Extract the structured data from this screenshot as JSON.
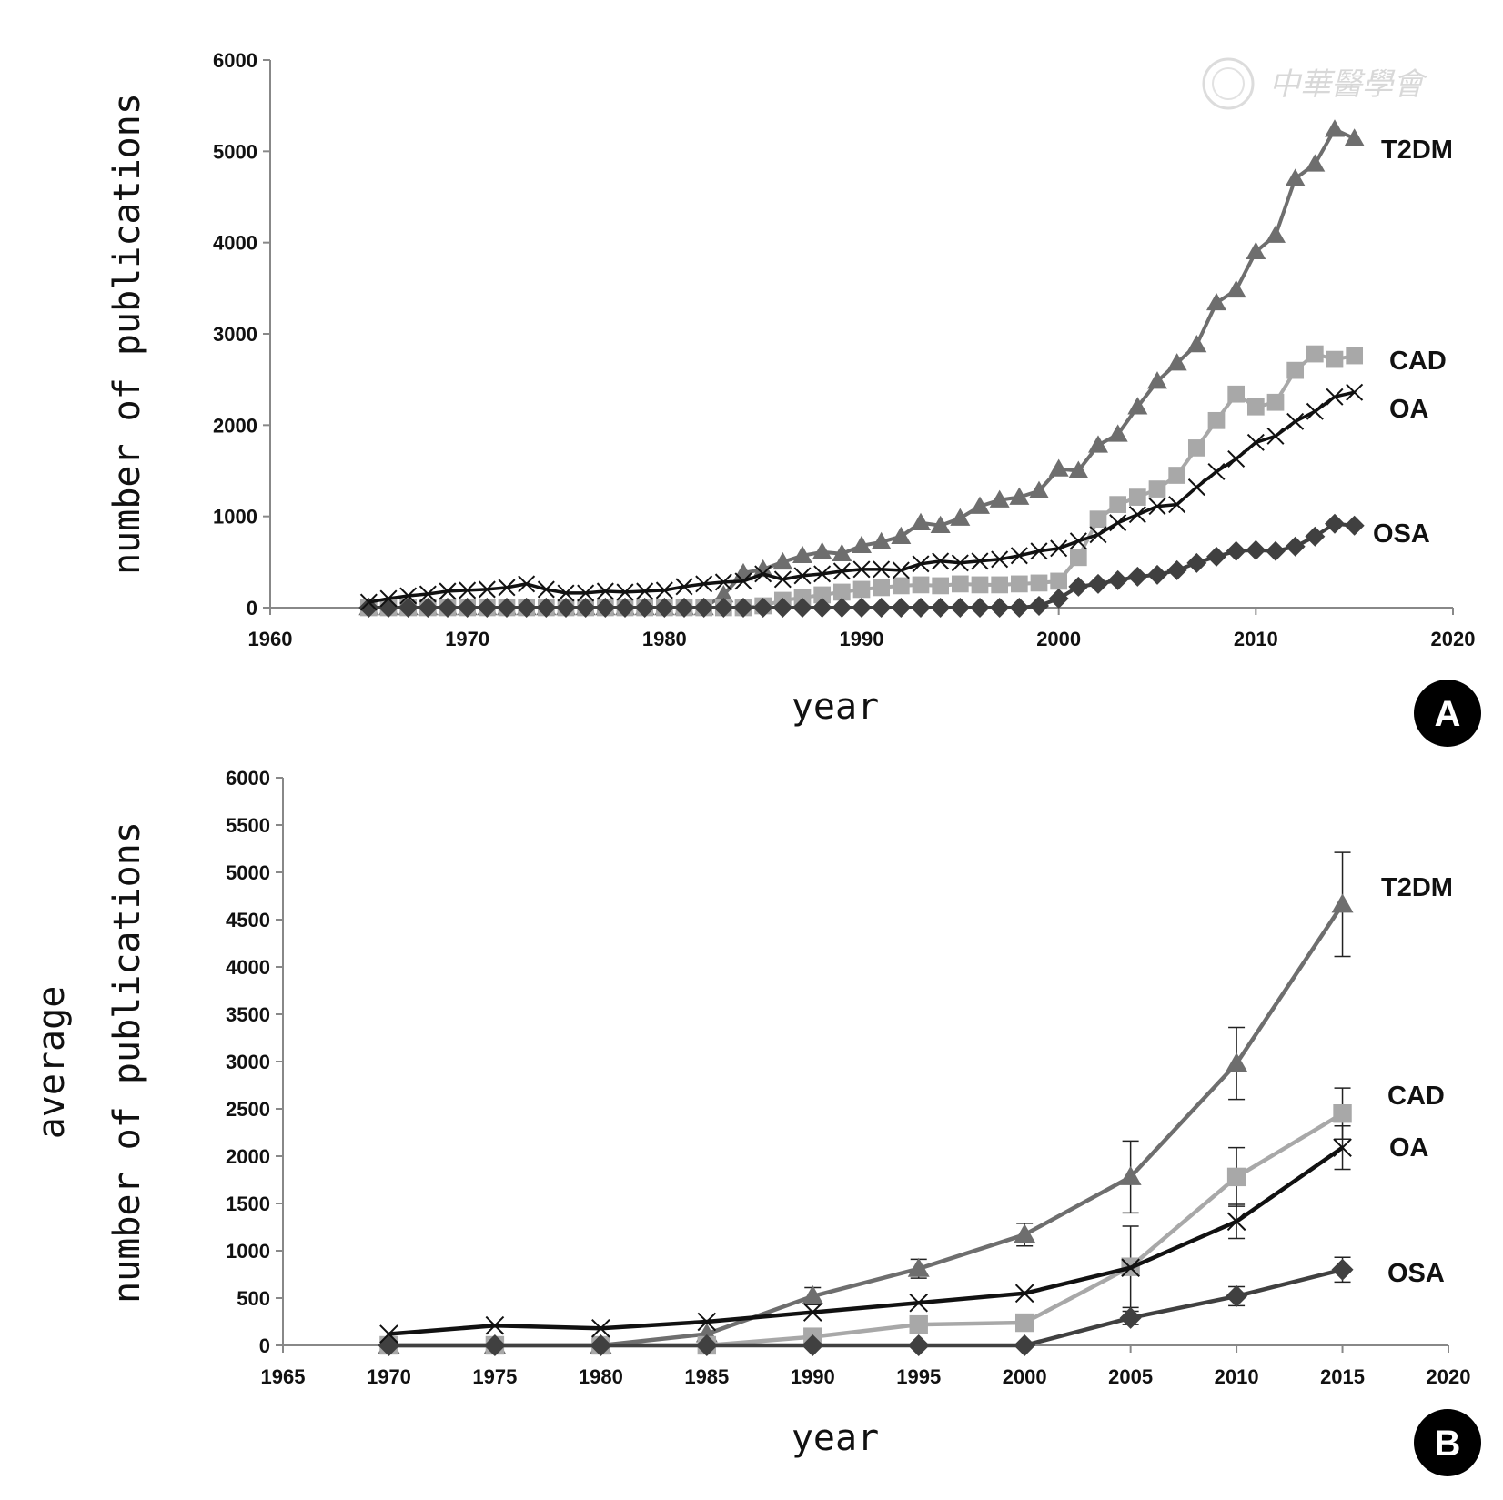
{
  "watermark": {
    "text": "中華醫學會"
  },
  "chart_data": [
    {
      "type": "line",
      "panel": "A",
      "xlabel": "year",
      "ylabel": "number of publications",
      "xlim": [
        1960,
        2020
      ],
      "ylim": [
        0,
        6000
      ],
      "xticks": [
        "1960",
        "1970",
        "1980",
        "1990",
        "2000",
        "2010",
        "2020"
      ],
      "yticks": [
        "0",
        "1000",
        "2000",
        "3000",
        "4000",
        "5000",
        "6000"
      ],
      "x": [
        1965,
        1966,
        1967,
        1968,
        1969,
        1970,
        1971,
        1972,
        1973,
        1974,
        1975,
        1976,
        1977,
        1978,
        1979,
        1980,
        1981,
        1982,
        1983,
        1984,
        1985,
        1986,
        1987,
        1988,
        1989,
        1990,
        1991,
        1992,
        1993,
        1994,
        1995,
        1996,
        1997,
        1998,
        1999,
        2000,
        2001,
        2002,
        2003,
        2004,
        2005,
        2006,
        2007,
        2008,
        2009,
        2010,
        2011,
        2012,
        2013,
        2014,
        2015
      ],
      "series": [
        {
          "name": "T2DM",
          "marker": "triangle",
          "color": "#6e6e6e",
          "values": [
            0,
            0,
            0,
            0,
            0,
            0,
            0,
            0,
            0,
            0,
            0,
            0,
            0,
            0,
            0,
            0,
            0,
            0,
            140,
            380,
            420,
            500,
            570,
            610,
            590,
            680,
            720,
            780,
            930,
            900,
            980,
            1110,
            1180,
            1210,
            1280,
            1520,
            1500,
            1780,
            1900,
            2200,
            2480,
            2680,
            2880,
            3340,
            3480,
            3900,
            4080,
            4700,
            4860,
            5240,
            5140
          ]
        },
        {
          "name": "CAD",
          "marker": "square",
          "color": "#a8a8a8",
          "values": [
            0,
            0,
            0,
            0,
            0,
            0,
            0,
            0,
            0,
            0,
            0,
            0,
            0,
            0,
            0,
            0,
            0,
            0,
            0,
            0,
            20,
            80,
            110,
            140,
            170,
            200,
            220,
            240,
            250,
            240,
            260,
            250,
            250,
            260,
            270,
            290,
            550,
            970,
            1130,
            1210,
            1300,
            1450,
            1750,
            2050,
            2340,
            2200,
            2250,
            2600,
            2780,
            2720,
            2760
          ]
        },
        {
          "name": "OA",
          "marker": "x",
          "color": "#111111",
          "values": [
            60,
            100,
            130,
            150,
            180,
            190,
            200,
            220,
            260,
            200,
            160,
            160,
            180,
            170,
            180,
            190,
            230,
            260,
            280,
            290,
            370,
            310,
            350,
            370,
            400,
            420,
            420,
            410,
            480,
            510,
            490,
            510,
            530,
            570,
            620,
            650,
            730,
            800,
            930,
            1020,
            1110,
            1130,
            1320,
            1490,
            1630,
            1810,
            1880,
            2040,
            2150,
            2310,
            2360
          ]
        },
        {
          "name": "OSA",
          "marker": "diamond",
          "color": "#404040",
          "values": [
            0,
            0,
            0,
            0,
            0,
            0,
            0,
            0,
            0,
            0,
            0,
            0,
            0,
            0,
            0,
            0,
            0,
            0,
            0,
            0,
            0,
            0,
            0,
            0,
            0,
            0,
            0,
            0,
            0,
            0,
            0,
            0,
            0,
            0,
            20,
            100,
            230,
            260,
            300,
            340,
            360,
            410,
            490,
            560,
            620,
            630,
            620,
            670,
            780,
            920,
            900
          ]
        }
      ],
      "series_labels": [
        "T2DM",
        "CAD",
        "OA",
        "OSA"
      ],
      "panel_badge": "A"
    },
    {
      "type": "line",
      "panel": "B",
      "xlabel": "year",
      "ylabel": "average\nnumber of publications",
      "ylabel_lines": [
        "average",
        "number of publications"
      ],
      "xlim": [
        1965,
        2020
      ],
      "ylim": [
        0,
        6000
      ],
      "xticks": [
        "1965",
        "1970",
        "1975",
        "1980",
        "1985",
        "1990",
        "1995",
        "2000",
        "2005",
        "2010",
        "2015",
        "2020"
      ],
      "yticks": [
        "0",
        "500",
        "1000",
        "1500",
        "2000",
        "2500",
        "3000",
        "3500",
        "4000",
        "4500",
        "5000",
        "5500",
        "6000"
      ],
      "x": [
        1970,
        1975,
        1980,
        1985,
        1990,
        1995,
        2000,
        2005,
        2010,
        2015
      ],
      "series": [
        {
          "name": "T2DM",
          "marker": "triangle",
          "color": "#6e6e6e",
          "values": [
            0,
            0,
            0,
            120,
            520,
            810,
            1170,
            1780,
            2980,
            4660
          ],
          "errors": [
            0,
            0,
            0,
            0,
            90,
            100,
            120,
            380,
            380,
            550
          ]
        },
        {
          "name": "CAD",
          "marker": "square",
          "color": "#a8a8a8",
          "values": [
            0,
            0,
            0,
            0,
            90,
            220,
            240,
            830,
            1780,
            2450
          ],
          "errors": [
            0,
            0,
            0,
            0,
            0,
            0,
            0,
            430,
            310,
            270
          ]
        },
        {
          "name": "OA",
          "marker": "x",
          "color": "#111111",
          "values": [
            120,
            210,
            180,
            250,
            350,
            450,
            550,
            820,
            1310,
            2090
          ],
          "errors": [
            0,
            0,
            0,
            0,
            0,
            0,
            0,
            0,
            180,
            230
          ]
        },
        {
          "name": "OSA",
          "marker": "diamond",
          "color": "#404040",
          "values": [
            0,
            0,
            0,
            0,
            0,
            0,
            0,
            290,
            520,
            800
          ],
          "errors": [
            0,
            0,
            0,
            0,
            0,
            0,
            0,
            70,
            100,
            130
          ]
        }
      ],
      "series_labels": [
        "T2DM",
        "CAD",
        "OA",
        "OSA"
      ],
      "panel_badge": "B"
    }
  ]
}
